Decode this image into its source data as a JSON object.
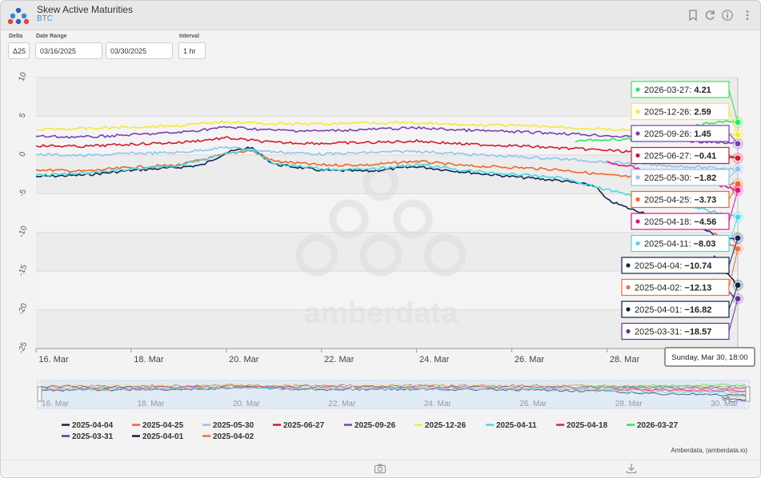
{
  "app": {
    "title": "Skew Active Maturities",
    "subtitle": "BTC",
    "credit": "Amberdata, (amberdata.io)",
    "watermark": "amberdata"
  },
  "controls": {
    "delta_label": "Delta",
    "delta_value": "Δ25",
    "date_range_label": "Date Range",
    "date_start": "03/16/2025",
    "date_end": "03/30/2025",
    "interval_label": "Interval",
    "interval_value": "1 hr"
  },
  "header_icons": [
    "bookmark-icon",
    "refresh-icon",
    "info-icon",
    "more-icon"
  ],
  "footer_icons": [
    "camera-icon",
    "download-icon"
  ],
  "tooltip": "Sunday, Mar 30, 18:00",
  "chart_data": {
    "type": "line",
    "title": "",
    "xlabel": "",
    "ylabel": "",
    "ylim": [
      -25,
      10
    ],
    "yticks": [
      10,
      5,
      0,
      -5,
      -10,
      -15,
      -20,
      -25
    ],
    "ytick_labels": [
      "10",
      "5",
      "0",
      "-5",
      "-10",
      "-15",
      "-20",
      "-25"
    ],
    "xrange": [
      "2025-03-16T00:00",
      "2025-03-30T18:00"
    ],
    "xticks": [
      "2025-03-16",
      "2025-03-18",
      "2025-03-20",
      "2025-03-22",
      "2025-03-24",
      "2025-03-26",
      "2025-03-28",
      "2025-03-30"
    ],
    "xtick_labels": [
      "16. Mar",
      "18. Mar",
      "20. Mar",
      "22. Mar",
      "24. Mar",
      "26. Mar",
      "28. Mar",
      "30. Mar"
    ],
    "grid": true,
    "legend_position": "bottom",
    "navigator": true,
    "series": [
      {
        "name": "2025-04-04",
        "color": "#12264f",
        "last": -10.74,
        "x": [
          "2025-03-16",
          "2025-03-17",
          "2025-03-18",
          "2025-03-19",
          "2025-03-19T12:00",
          "2025-03-20",
          "2025-03-20T12:00",
          "2025-03-21",
          "2025-03-22",
          "2025-03-23",
          "2025-03-24",
          "2025-03-25",
          "2025-03-26",
          "2025-03-27",
          "2025-03-27T18:00",
          "2025-03-28",
          "2025-03-28T12:00",
          "2025-03-29",
          "2025-03-29T12:00",
          "2025-03-30",
          "2025-03-30T12:00",
          "2025-03-30T18:00"
        ],
        "y": [
          -2.8,
          -2.6,
          -2.0,
          -1.6,
          -1.3,
          0.3,
          1.0,
          -1.2,
          -2.0,
          -2.1,
          -1.5,
          -2.2,
          -2.8,
          -3.3,
          -4.0,
          -5.8,
          -7.0,
          -7.8,
          -8.6,
          -9.5,
          -11.0,
          -10.74
        ]
      },
      {
        "name": "2025-04-25",
        "color": "#f26522",
        "last": -3.73,
        "x": [
          "2025-03-16",
          "2025-03-17",
          "2025-03-18",
          "2025-03-19",
          "2025-03-20",
          "2025-03-20T12:00",
          "2025-03-21",
          "2025-03-22",
          "2025-03-23",
          "2025-03-24",
          "2025-03-25",
          "2025-03-26",
          "2025-03-27",
          "2025-03-28",
          "2025-03-29",
          "2025-03-30",
          "2025-03-30T18:00"
        ],
        "y": [
          -1.9,
          -2.1,
          -1.6,
          -1.3,
          0.1,
          0.6,
          -0.8,
          -1.3,
          -1.3,
          -0.8,
          -1.4,
          -1.6,
          -1.9,
          -2.6,
          -3.1,
          -3.5,
          -3.73
        ]
      },
      {
        "name": "2025-05-30",
        "color": "#8cc4f5",
        "last": -1.82,
        "x": [
          "2025-03-16",
          "2025-03-17",
          "2025-03-18",
          "2025-03-19",
          "2025-03-20",
          "2025-03-21",
          "2025-03-22",
          "2025-03-23",
          "2025-03-24",
          "2025-03-25",
          "2025-03-26",
          "2025-03-27",
          "2025-03-28",
          "2025-03-29",
          "2025-03-30",
          "2025-03-30T18:00"
        ],
        "y": [
          0.1,
          -0.1,
          0.2,
          0.3,
          1.0,
          0.4,
          0.1,
          0.3,
          0.5,
          0.1,
          -0.2,
          -0.5,
          -0.9,
          -1.3,
          -1.6,
          -1.82
        ]
      },
      {
        "name": "2025-06-27",
        "color": "#d7192f",
        "last": -0.41,
        "x": [
          "2025-03-16",
          "2025-03-17",
          "2025-03-18",
          "2025-03-19",
          "2025-03-20",
          "2025-03-21",
          "2025-03-22",
          "2025-03-23",
          "2025-03-24",
          "2025-03-25",
          "2025-03-26",
          "2025-03-27",
          "2025-03-28",
          "2025-03-29",
          "2025-03-30",
          "2025-03-30T18:00"
        ],
        "y": [
          1.2,
          1.1,
          1.4,
          1.6,
          2.2,
          1.6,
          1.5,
          1.6,
          1.8,
          1.4,
          1.2,
          0.9,
          0.6,
          0.2,
          -0.2,
          -0.41
        ]
      },
      {
        "name": "2025-09-26",
        "color": "#7b3fb5",
        "last": 1.45,
        "x": [
          "2025-03-16",
          "2025-03-17",
          "2025-03-18",
          "2025-03-19",
          "2025-03-20",
          "2025-03-21",
          "2025-03-22",
          "2025-03-23",
          "2025-03-24",
          "2025-03-25",
          "2025-03-26",
          "2025-03-27",
          "2025-03-28",
          "2025-03-29",
          "2025-03-30",
          "2025-03-30T18:00"
        ],
        "y": [
          2.4,
          2.3,
          2.6,
          2.9,
          3.6,
          3.2,
          3.1,
          3.3,
          3.5,
          3.2,
          3.0,
          2.8,
          2.5,
          2.1,
          1.7,
          1.45
        ]
      },
      {
        "name": "2025-12-26",
        "color": "#f2ea38",
        "last": 2.59,
        "x": [
          "2025-03-16",
          "2025-03-17",
          "2025-03-18",
          "2025-03-19",
          "2025-03-20",
          "2025-03-21",
          "2025-03-22",
          "2025-03-23",
          "2025-03-24",
          "2025-03-25",
          "2025-03-26",
          "2025-03-27",
          "2025-03-28",
          "2025-03-29",
          "2025-03-30",
          "2025-03-30T18:00"
        ],
        "y": [
          3.3,
          3.4,
          3.6,
          3.8,
          4.3,
          4.0,
          4.0,
          4.2,
          4.1,
          3.9,
          3.8,
          3.6,
          3.3,
          3.0,
          2.8,
          2.59
        ]
      },
      {
        "name": "2025-04-11",
        "color": "#46d9e6",
        "last": -8.03,
        "x": [
          "2025-03-16",
          "2025-03-17",
          "2025-03-18",
          "2025-03-19",
          "2025-03-20",
          "2025-03-20T12:00",
          "2025-03-21",
          "2025-03-22",
          "2025-03-23",
          "2025-03-24",
          "2025-03-25",
          "2025-03-26",
          "2025-03-27",
          "2025-03-28",
          "2025-03-29",
          "2025-03-30",
          "2025-03-30T18:00"
        ],
        "y": [
          -2.6,
          -2.4,
          -1.8,
          -1.4,
          0.2,
          0.8,
          -1.1,
          -1.8,
          -1.9,
          -1.2,
          -2.0,
          -2.5,
          -2.9,
          -4.5,
          -5.8,
          -7.0,
          -8.03
        ]
      },
      {
        "name": "2025-04-18",
        "color": "#e8118a",
        "last": -4.56,
        "x": [
          "2025-03-28",
          "2025-03-28T12:00",
          "2025-03-29",
          "2025-03-29T12:00",
          "2025-03-30",
          "2025-03-30T12:00",
          "2025-03-30T18:00"
        ],
        "y": [
          -1.0,
          -1.5,
          -2.3,
          -2.8,
          -3.4,
          -4.1,
          -4.56
        ]
      },
      {
        "name": "2026-03-27",
        "color": "#2ee85a",
        "last": 4.21,
        "x": [
          "2025-03-27T08:00",
          "2025-03-27T12:00",
          "2025-03-28",
          "2025-03-28T12:00",
          "2025-03-29",
          "2025-03-29T12:00",
          "2025-03-30",
          "2025-03-30T12:00",
          "2025-03-30T18:00"
        ],
        "y": [
          1.7,
          2.0,
          1.9,
          2.1,
          2.7,
          3.5,
          4.0,
          4.3,
          4.21
        ]
      },
      {
        "name": "2025-03-31",
        "color": "#6a2fa0",
        "last": -18.57,
        "x": [
          "2025-03-30T06:00",
          "2025-03-30T12:00",
          "2025-03-30T18:00"
        ],
        "y": [
          -16.0,
          -17.5,
          -18.57
        ]
      },
      {
        "name": "2025-04-01",
        "color": "#0e2248",
        "last": -16.82,
        "x": [
          "2025-03-30T06:00",
          "2025-03-30T12:00",
          "2025-03-30T18:00"
        ],
        "y": [
          -13.0,
          -15.2,
          -16.82
        ]
      },
      {
        "name": "2025-04-02",
        "color": "#ee7240",
        "last": -12.13,
        "x": [
          "2025-03-30T06:00",
          "2025-03-30T12:00",
          "2025-03-30T18:00"
        ],
        "y": [
          -10.0,
          -11.2,
          -12.13
        ]
      }
    ],
    "legend": [
      [
        "2025-04-04",
        "2025-04-25",
        "2025-05-30",
        "2025-06-27",
        "2025-09-26",
        "2025-12-26",
        "2025-04-11",
        "2025-04-18",
        "2026-03-27"
      ],
      [
        "2025-03-31",
        "2025-04-01",
        "2025-04-02"
      ]
    ],
    "labels_order": [
      "2026-03-27",
      "2025-12-26",
      "2025-09-26",
      "2025-06-27",
      "2025-05-30",
      "2025-04-25",
      "2025-04-18",
      "2025-04-11",
      "2025-04-04",
      "2025-04-02",
      "2025-04-01",
      "2025-03-31"
    ]
  }
}
